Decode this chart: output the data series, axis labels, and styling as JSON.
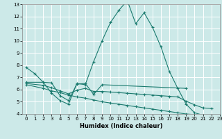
{
  "xlabel": "Humidex (Indice chaleur)",
  "background_color": "#cce9e8",
  "grid_color": "#ffffff",
  "line_color": "#1a7a6e",
  "xlim": [
    -0.5,
    23
  ],
  "ylim": [
    4,
    13
  ],
  "xticks": [
    0,
    1,
    2,
    3,
    4,
    5,
    6,
    7,
    8,
    9,
    10,
    11,
    12,
    13,
    14,
    15,
    16,
    17,
    18,
    19,
    20,
    21,
    22,
    23
  ],
  "yticks": [
    4,
    5,
    6,
    7,
    8,
    9,
    10,
    11,
    12,
    13
  ],
  "series": [
    {
      "x": [
        0,
        1,
        2,
        3,
        4,
        5,
        6,
        7,
        8,
        9,
        10,
        11,
        12,
        13,
        14,
        15,
        16,
        17,
        18,
        19,
        20,
        21,
        22
      ],
      "y": [
        7.8,
        7.3,
        6.6,
        5.7,
        5.1,
        4.8,
        6.5,
        6.4,
        8.3,
        10.0,
        11.5,
        12.5,
        13.3,
        11.4,
        12.3,
        11.1,
        9.5,
        7.5,
        6.1,
        4.8,
        4.1,
        3.9,
        3.85
      ]
    },
    {
      "x": [
        0,
        2,
        3,
        4,
        5,
        6,
        7,
        8,
        9,
        19
      ],
      "y": [
        6.6,
        6.6,
        6.55,
        5.5,
        5.1,
        6.45,
        6.5,
        5.6,
        6.4,
        6.1
      ]
    },
    {
      "x": [
        0,
        2,
        3,
        4,
        5,
        6,
        7,
        8,
        9,
        10,
        11,
        12,
        13,
        14,
        15,
        16,
        17,
        18,
        19,
        20,
        21,
        22
      ],
      "y": [
        6.5,
        6.35,
        6.15,
        5.9,
        5.65,
        5.95,
        6.1,
        5.85,
        5.85,
        5.8,
        5.75,
        5.7,
        5.65,
        5.6,
        5.55,
        5.5,
        5.45,
        5.4,
        5.05,
        4.75,
        4.5,
        4.45
      ]
    },
    {
      "x": [
        0,
        2,
        3,
        4,
        5,
        6,
        7,
        8,
        9,
        10,
        11,
        12,
        13,
        14,
        15,
        16,
        17,
        18,
        19,
        20,
        21,
        22
      ],
      "y": [
        6.4,
        6.1,
        5.9,
        5.75,
        5.55,
        5.4,
        5.3,
        5.15,
        5.0,
        4.9,
        4.8,
        4.7,
        4.6,
        4.5,
        4.4,
        4.3,
        4.2,
        4.1,
        4.0,
        3.95,
        3.9,
        3.85
      ]
    }
  ]
}
